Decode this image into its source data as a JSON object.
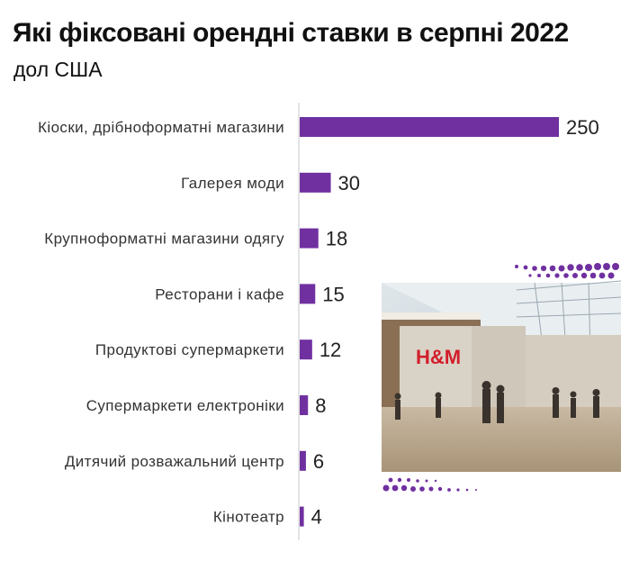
{
  "title": "Які фіксовані орендні ставки в серпні 2022",
  "subtitle": "дол США",
  "colors": {
    "bar": "#7030a0",
    "axis": "#c8c8c8",
    "text": "#222222"
  },
  "photo": {
    "sign_text": "H&M",
    "icon": "shopping-mall-photo"
  },
  "chart_data": {
    "type": "bar",
    "orientation": "horizontal",
    "title": "Які фіксовані орендні ставки в серпні 2022",
    "subtitle": "дол США",
    "xlabel": "",
    "ylabel": "",
    "xlim": [
      0,
      250
    ],
    "grid": false,
    "categories": [
      "Кіоски, дрібноформатні магазини",
      "Галерея моди",
      "Крупноформатні магазини одягу",
      "Ресторани і кафе",
      "Продуктові супермаркети",
      "Супермаркети електроніки",
      "Дитячий розважальний центр",
      "Кінотеатр"
    ],
    "values": [
      250,
      30,
      18,
      15,
      12,
      8,
      6,
      4
    ]
  }
}
